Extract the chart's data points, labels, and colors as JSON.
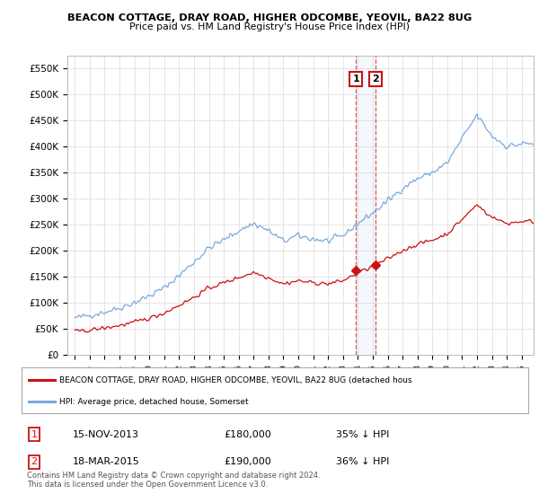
{
  "title": "BEACON COTTAGE, DRAY ROAD, HIGHER ODCOMBE, YEOVIL, BA22 8UG",
  "subtitle": "Price paid vs. HM Land Registry's House Price Index (HPI)",
  "hpi_label": "HPI: Average price, detached house, Somerset",
  "property_label": "BEACON COTTAGE, DRAY ROAD, HIGHER ODCOMBE, YEOVIL, BA22 8UG (detached hous",
  "copyright": "Contains HM Land Registry data © Crown copyright and database right 2024.\nThis data is licensed under the Open Government Licence v3.0.",
  "hpi_color": "#7aaadd",
  "property_color": "#cc1111",
  "vline_color": "#dd4444",
  "annotation_box_color": "#cc1111",
  "transaction1": {
    "label": "1",
    "date": "15-NOV-2013",
    "price": 180000,
    "pct": "35% ↓ HPI"
  },
  "transaction2": {
    "label": "2",
    "date": "18-MAR-2015",
    "price": 190000,
    "pct": "36% ↓ HPI"
  },
  "t1_x": 2013.875,
  "t2_x": 2015.208,
  "t1_y": 162000,
  "t2_y": 172000,
  "bg_color": "#ffffff",
  "grid_color": "#e0e0e0",
  "ylim": [
    0,
    575000
  ],
  "yticks": [
    0,
    50000,
    100000,
    150000,
    200000,
    250000,
    300000,
    350000,
    400000,
    450000,
    500000,
    550000
  ],
  "ytick_labels": [
    "£0",
    "£50K",
    "£100K",
    "£150K",
    "£200K",
    "£250K",
    "£300K",
    "£350K",
    "£400K",
    "£450K",
    "£500K",
    "£550K"
  ],
  "xlim": [
    1994.5,
    2025.8
  ],
  "xtick_years": [
    1995,
    1996,
    1997,
    1998,
    1999,
    2000,
    2001,
    2002,
    2003,
    2004,
    2005,
    2006,
    2007,
    2008,
    2009,
    2010,
    2011,
    2012,
    2013,
    2014,
    2015,
    2016,
    2017,
    2018,
    2019,
    2020,
    2021,
    2022,
    2023,
    2024,
    2025
  ]
}
